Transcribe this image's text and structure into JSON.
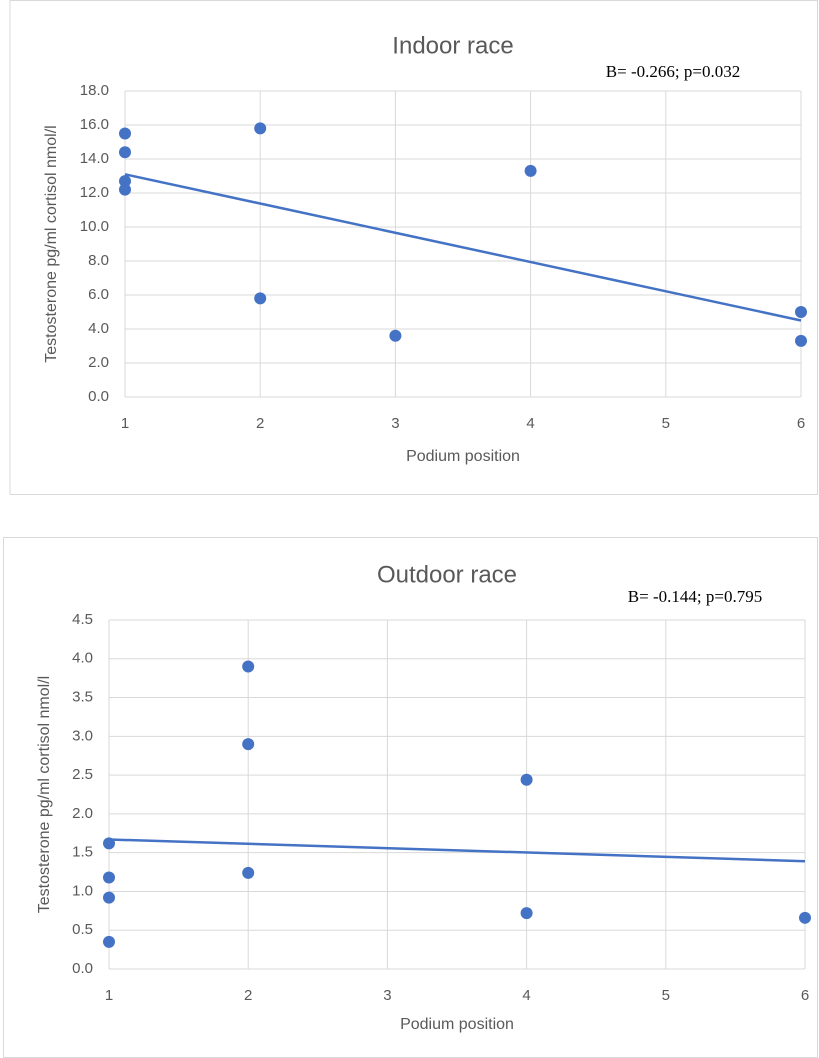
{
  "chart_data": [
    {
      "type": "scatter",
      "title": "Indoor race",
      "annotation": "B= -0.266; p=0.032",
      "x_label": "Podium position",
      "y_label": "Testosterone pg/ml cortisol nmol/l",
      "color": "#4472c4",
      "grid": true,
      "x": [
        1,
        1,
        1,
        1,
        2,
        2,
        3,
        4,
        6,
        6
      ],
      "values": [
        15.5,
        14.4,
        12.7,
        12.2,
        15.8,
        5.8,
        3.6,
        13.3,
        5.0,
        3.3
      ],
      "trendline": {
        "x": [
          1,
          6
        ],
        "y": [
          13.1,
          4.5
        ]
      },
      "xlim": [
        1,
        6
      ],
      "xticks": [
        1,
        2,
        3,
        4,
        5,
        6
      ],
      "ylim": [
        0,
        18
      ],
      "yticks": [
        {
          "value": 0,
          "label": "0.0"
        },
        {
          "value": 2,
          "label": "2.0"
        },
        {
          "value": 4,
          "label": "4.0"
        },
        {
          "value": 6,
          "label": "6.0"
        },
        {
          "value": 8,
          "label": "8.0"
        },
        {
          "value": 10,
          "label": "10.0"
        },
        {
          "value": 12,
          "label": "12.0"
        },
        {
          "value": 14,
          "label": "14.0"
        },
        {
          "value": 16,
          "label": "16.0"
        },
        {
          "value": 18,
          "label": "18.0"
        }
      ]
    },
    {
      "type": "scatter",
      "title": "Outdoor race",
      "annotation": "B= -0.144; p=0.795",
      "x_label": "Podium position",
      "y_label": "Testosterone pg/ml cortisol nmol/l",
      "color": "#4472c4",
      "grid": true,
      "x": [
        1,
        1,
        1,
        1,
        2,
        2,
        2,
        4,
        4,
        6
      ],
      "values": [
        1.62,
        1.18,
        0.92,
        0.35,
        3.9,
        2.9,
        1.24,
        2.44,
        0.72,
        0.66
      ],
      "trendline": {
        "x": [
          1,
          6
        ],
        "y": [
          1.67,
          1.39
        ]
      },
      "xlim": [
        1,
        6
      ],
      "xticks": [
        1,
        2,
        3,
        4,
        5,
        6
      ],
      "ylim": [
        0,
        4.5
      ],
      "yticks": [
        {
          "value": 0,
          "label": "0.0"
        },
        {
          "value": 0.5,
          "label": "0.5"
        },
        {
          "value": 1,
          "label": "1.0"
        },
        {
          "value": 1.5,
          "label": "1.5"
        },
        {
          "value": 2,
          "label": "2.0"
        },
        {
          "value": 2.5,
          "label": "2.5"
        },
        {
          "value": 3,
          "label": "3.0"
        },
        {
          "value": 3.5,
          "label": "3.5"
        },
        {
          "value": 4,
          "label": "4.0"
        },
        {
          "value": 4.5,
          "label": "4.5"
        }
      ]
    }
  ]
}
